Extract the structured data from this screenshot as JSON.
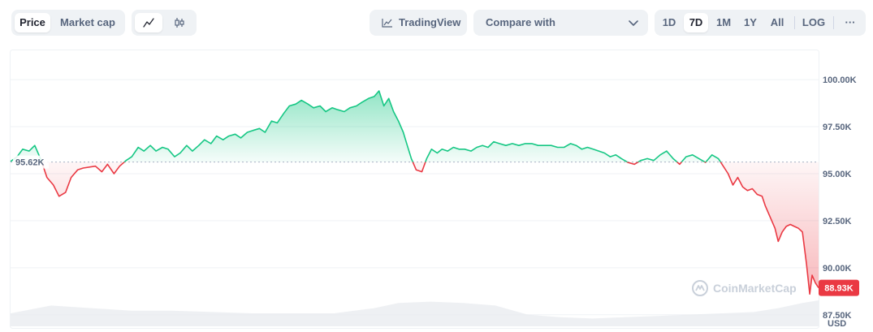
{
  "toolbar": {
    "view_tabs": [
      {
        "label": "Price",
        "active": true
      },
      {
        "label": "Market cap",
        "active": false
      }
    ],
    "chart_type_buttons": [
      {
        "icon": "line-chart-icon",
        "active": true
      },
      {
        "icon": "candlestick-icon",
        "active": false
      }
    ],
    "tradingview_label": "TradingView",
    "tradingview_icon": "trending-chart-icon",
    "compare_label": "Compare with",
    "compare_icon": "chevron-down-icon",
    "ranges": [
      {
        "label": "1D",
        "active": false
      },
      {
        "label": "7D",
        "active": true
      },
      {
        "label": "1M",
        "active": false
      },
      {
        "label": "1Y",
        "active": false
      },
      {
        "label": "All",
        "active": false
      }
    ],
    "log_label": "LOG",
    "more_label": "···"
  },
  "watermark": "CoinMarketCap",
  "colors": {
    "up": "#16c784",
    "down": "#ea3943",
    "axis_text": "#58667e",
    "grid": "#eff2f5"
  },
  "chart_data": {
    "type": "area",
    "title": "",
    "xlabel": "",
    "ylabel": "",
    "currency": "USD",
    "ylim": [
      86800,
      101600
    ],
    "y_ticks": [
      {
        "value": 100000,
        "label": "100.00K"
      },
      {
        "value": 97500,
        "label": "97.50K"
      },
      {
        "value": 95000,
        "label": "95.00K"
      },
      {
        "value": 92500,
        "label": "92.50K"
      },
      {
        "value": 90000,
        "label": "90.00K"
      },
      {
        "value": 87500,
        "label": "87.50K"
      }
    ],
    "reference": {
      "value": 95620,
      "label": "95.62K"
    },
    "current": {
      "value": 88930,
      "label": "88.93K"
    },
    "xlim": [
      0,
      100
    ],
    "grid": true,
    "price": [
      [
        0.0,
        95650
      ],
      [
        0.8,
        95900
      ],
      [
        1.5,
        96300
      ],
      [
        2.3,
        96200
      ],
      [
        3.0,
        96500
      ],
      [
        3.8,
        95700
      ],
      [
        4.5,
        94800
      ],
      [
        5.3,
        94400
      ],
      [
        6.0,
        93800
      ],
      [
        6.8,
        94000
      ],
      [
        7.5,
        94800
      ],
      [
        8.3,
        95200
      ],
      [
        9.0,
        95300
      ],
      [
        10.5,
        95400
      ],
      [
        11.3,
        95100
      ],
      [
        12.0,
        95500
      ],
      [
        12.8,
        95000
      ],
      [
        13.5,
        95400
      ],
      [
        14.3,
        95700
      ],
      [
        15.0,
        95900
      ],
      [
        15.8,
        96400
      ],
      [
        16.5,
        96200
      ],
      [
        17.3,
        96500
      ],
      [
        18.0,
        96200
      ],
      [
        18.8,
        96400
      ],
      [
        19.5,
        96300
      ],
      [
        20.3,
        95900
      ],
      [
        21.0,
        96100
      ],
      [
        21.8,
        96500
      ],
      [
        22.5,
        96200
      ],
      [
        23.3,
        96500
      ],
      [
        24.0,
        96800
      ],
      [
        24.8,
        96600
      ],
      [
        25.5,
        97000
      ],
      [
        26.3,
        96800
      ],
      [
        27.0,
        97000
      ],
      [
        27.8,
        97100
      ],
      [
        28.5,
        96900
      ],
      [
        29.3,
        97200
      ],
      [
        30.0,
        97300
      ],
      [
        30.8,
        97400
      ],
      [
        31.5,
        97200
      ],
      [
        32.3,
        97800
      ],
      [
        33.0,
        97700
      ],
      [
        33.8,
        98200
      ],
      [
        34.5,
        98600
      ],
      [
        35.3,
        98700
      ],
      [
        36.0,
        98900
      ],
      [
        36.8,
        98700
      ],
      [
        37.5,
        98500
      ],
      [
        38.3,
        98600
      ],
      [
        39.0,
        98300
      ],
      [
        39.8,
        98500
      ],
      [
        40.5,
        98400
      ],
      [
        41.3,
        98300
      ],
      [
        42.0,
        98500
      ],
      [
        42.8,
        98600
      ],
      [
        43.5,
        98800
      ],
      [
        44.3,
        99000
      ],
      [
        45.0,
        99100
      ],
      [
        45.6,
        99400
      ],
      [
        46.2,
        98600
      ],
      [
        46.8,
        99000
      ],
      [
        47.4,
        98300
      ],
      [
        48.0,
        97800
      ],
      [
        48.6,
        97200
      ],
      [
        49.1,
        96500
      ],
      [
        49.6,
        95800
      ],
      [
        50.2,
        95200
      ],
      [
        50.9,
        95100
      ],
      [
        51.5,
        95800
      ],
      [
        52.1,
        96300
      ],
      [
        52.8,
        96100
      ],
      [
        53.4,
        96300
      ],
      [
        54.1,
        96200
      ],
      [
        54.8,
        96400
      ],
      [
        55.5,
        96300
      ],
      [
        56.2,
        96300
      ],
      [
        57.0,
        96200
      ],
      [
        57.7,
        96400
      ],
      [
        58.4,
        96500
      ],
      [
        59.1,
        96400
      ],
      [
        59.8,
        96700
      ],
      [
        60.5,
        96600
      ],
      [
        61.3,
        96500
      ],
      [
        62.1,
        96600
      ],
      [
        62.9,
        96500
      ],
      [
        63.7,
        96600
      ],
      [
        64.5,
        96600
      ],
      [
        65.3,
        96500
      ],
      [
        66.1,
        96500
      ],
      [
        66.9,
        96500
      ],
      [
        67.7,
        96400
      ],
      [
        68.5,
        96400
      ],
      [
        69.3,
        96600
      ],
      [
        70.0,
        96500
      ],
      [
        70.7,
        96300
      ],
      [
        71.4,
        96400
      ],
      [
        72.1,
        96300
      ],
      [
        72.8,
        96200
      ],
      [
        73.5,
        96100
      ],
      [
        74.2,
        95900
      ],
      [
        74.9,
        96000
      ],
      [
        75.6,
        95800
      ],
      [
        76.4,
        95600
      ],
      [
        77.2,
        95500
      ],
      [
        78.0,
        95700
      ],
      [
        78.8,
        95800
      ],
      [
        79.6,
        95700
      ],
      [
        80.4,
        96000
      ],
      [
        81.2,
        96200
      ],
      [
        82.0,
        95800
      ],
      [
        82.8,
        95500
      ],
      [
        83.6,
        95900
      ],
      [
        84.4,
        96000
      ],
      [
        85.2,
        95800
      ],
      [
        86.0,
        95600
      ],
      [
        86.8,
        96000
      ],
      [
        87.6,
        95800
      ],
      [
        88.2,
        95400
      ],
      [
        88.8,
        95000
      ],
      [
        89.4,
        94400
      ],
      [
        90.0,
        94800
      ],
      [
        90.6,
        94300
      ],
      [
        91.2,
        94100
      ],
      [
        91.8,
        94200
      ],
      [
        92.4,
        93900
      ],
      [
        93.0,
        93800
      ],
      [
        93.4,
        93300
      ],
      [
        94.0,
        92700
      ],
      [
        94.6,
        92100
      ],
      [
        95.0,
        91400
      ],
      [
        95.5,
        91900
      ],
      [
        96.0,
        92200
      ],
      [
        96.5,
        92300
      ],
      [
        97.0,
        92200
      ],
      [
        97.5,
        92100
      ],
      [
        98.0,
        91900
      ],
      [
        98.5,
        90200
      ],
      [
        98.9,
        88600
      ],
      [
        99.2,
        89600
      ],
      [
        99.6,
        89200
      ],
      [
        100.0,
        88930
      ]
    ],
    "volume_series": [
      [
        0,
        0.5
      ],
      [
        5,
        0.8
      ],
      [
        10,
        0.7
      ],
      [
        15,
        0.6
      ],
      [
        20,
        0.6
      ],
      [
        25,
        0.55
      ],
      [
        30,
        0.5
      ],
      [
        35,
        0.5
      ],
      [
        40,
        0.5
      ],
      [
        45,
        0.7
      ],
      [
        48,
        0.9
      ],
      [
        52,
        0.95
      ],
      [
        56,
        0.9
      ],
      [
        60,
        0.8
      ],
      [
        64,
        0.45
      ],
      [
        68,
        0.35
      ],
      [
        72,
        0.3
      ],
      [
        76,
        0.35
      ],
      [
        80,
        0.4
      ],
      [
        84,
        0.45
      ],
      [
        88,
        0.5
      ],
      [
        92,
        0.55
      ],
      [
        95,
        0.7
      ],
      [
        98,
        0.9
      ],
      [
        100,
        1.0
      ]
    ]
  }
}
